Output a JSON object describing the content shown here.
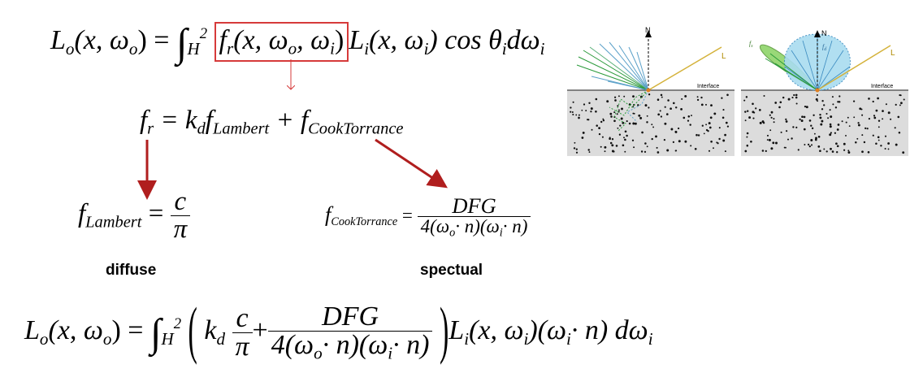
{
  "equation_top": {
    "lhs_L": "L",
    "lhs_sub": "o",
    "lhs_args": "(x, ω",
    "lhs_args_sub": "o",
    "lhs_close": ") =",
    "int_sub": "H",
    "int_sup": "2",
    "box_f": "f",
    "box_f_sub": "r",
    "box_args": "(x, ω",
    "box_o_sub": "o",
    "box_mid": ", ω",
    "box_i_sub": "i",
    "box_close": ")",
    "rhs_L": "L",
    "rhs_L_sub": "i",
    "rhs_args": "(x, ω",
    "rhs_args_sub": "i",
    "rhs_close": ") cos θ",
    "theta_sub": "i",
    "d_omega": "dω",
    "d_omega_sub": "i"
  },
  "equation_fr": {
    "f": "f",
    "f_sub": "r",
    "eq": "= k",
    "k_sub": "d",
    "f1": "f",
    "f1_sub": "Lambert",
    "plus": "+ f",
    "f2_sub": "CookTorrance"
  },
  "equation_lambert": {
    "f": "f",
    "f_sub": "Lambert",
    "eq": "=",
    "num": "c",
    "den": "π"
  },
  "equation_cook": {
    "f": "f",
    "f_sub": "CookTorrance",
    "eq": "=",
    "num": "DFG",
    "den_a": "4(ω",
    "den_o_sub": "o",
    "den_b": "· n)(ω",
    "den_i_sub": "i",
    "den_c": "· n)"
  },
  "labels": {
    "diffuse": "diffuse",
    "specular": "spectual"
  },
  "equation_full": {
    "lhs_L": "L",
    "lhs_sub": "o",
    "lhs_args": "(x, ω",
    "lhs_args_sub": "o",
    "lhs_close": ") =",
    "int_sub": "H",
    "int_sup": "2",
    "k": "k",
    "k_sub": "d",
    "num_c": "c",
    "den_pi": "π",
    "plus": "+",
    "num_dfg": "DFG",
    "den_a": "4(ω",
    "den_o_sub": "o",
    "den_b": "· n)(ω",
    "den_i_sub": "i",
    "den_c": "· n)",
    "rhs_L": "L",
    "rhs_L_sub": "i",
    "rhs_args": "(x, ω",
    "rhs_args_sub": "i",
    "rhs_mid": ")(ω",
    "rhs_mid_sub": "i",
    "rhs_end": "· n) dω",
    "rhs_end_sub": "i"
  },
  "diagrams": {
    "left": {
      "normal_label": "N",
      "light_label": "L",
      "interface_label": "Interface"
    },
    "right": {
      "normal_label": "N",
      "light_label": "L",
      "interface_label": "Interface",
      "lobe_s_label": "f",
      "lobe_s_sub": "s",
      "lobe_d_label": "f",
      "lobe_d_sub": "d"
    }
  },
  "colors": {
    "box": "#d63a3a",
    "arrow": "#b01e1e",
    "ground": "#dcdcdc",
    "diffuse_lobe": "#a9dcf0",
    "specular_lobe": "#8fd46a",
    "light_ray": "#d4b23a"
  }
}
